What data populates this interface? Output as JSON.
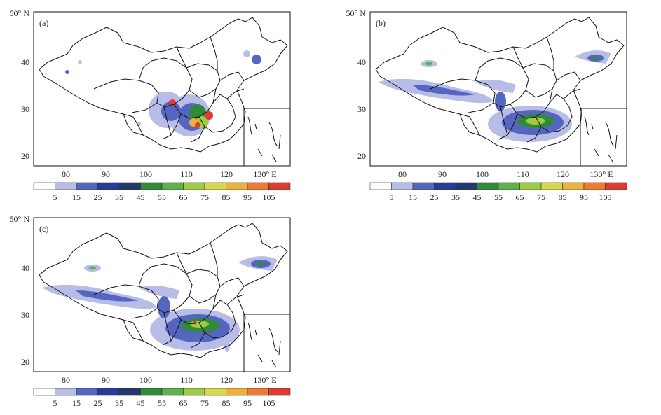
{
  "figure": {
    "panels": [
      {
        "label": "(a)",
        "lat_ticks": [
          "50° N",
          "40",
          "30",
          "20"
        ],
        "lon_ticks": [
          "80",
          "90",
          "100",
          "110",
          "120",
          "130° E"
        ],
        "legend": [
          "5",
          "15",
          "25",
          "35",
          "45",
          "55",
          "65",
          "75",
          "85",
          "95",
          "105"
        ]
      },
      {
        "label": "(b)",
        "lat_ticks": [
          "50° N",
          "40",
          "30",
          "20"
        ],
        "lon_ticks": [
          "80",
          "90",
          "100",
          "110",
          "120",
          "130° E"
        ],
        "legend": [
          "5",
          "15",
          "25",
          "35",
          "45",
          "55",
          "65",
          "75",
          "85",
          "95",
          "105"
        ]
      },
      {
        "label": "(c)",
        "lat_ticks": [
          "50° N",
          "40",
          "30",
          "20"
        ],
        "lon_ticks": [
          "80",
          "90",
          "100",
          "110",
          "120",
          "130° E"
        ],
        "legend": [
          "5",
          "15",
          "25",
          "35",
          "45",
          "55",
          "65",
          "75",
          "85",
          "95",
          "105"
        ]
      }
    ],
    "colors": {
      "levels": [
        "#ffffff",
        "#b8bde8",
        "#5566c0",
        "#2a3a9a",
        "#22386e",
        "#2f8a3a",
        "#5bb34a",
        "#9ccb44",
        "#d8d84a",
        "#eeb23a",
        "#ef7a30",
        "#e23a30"
      ]
    }
  }
}
